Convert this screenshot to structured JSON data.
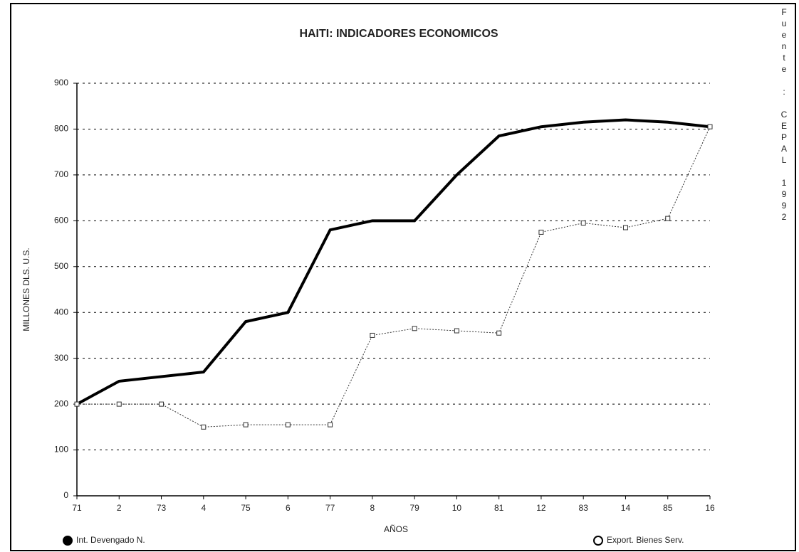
{
  "chart_data": {
    "type": "line",
    "title": "HAITI: INDICADORES ECONOMICOS",
    "y_label": "MILLONES DLS. U.S.",
    "x_label": "AÑOS",
    "source": "Fuente : CEPAL 1992",
    "categories": [
      "71",
      "2",
      "73",
      "4",
      "75",
      "6",
      "77",
      "8",
      "79",
      "10",
      "81",
      "12",
      "83",
      "14",
      "85",
      "16"
    ],
    "series": [
      {
        "name": "Int. Devengado N.",
        "color": "#000000",
        "values": [
          200,
          250,
          260,
          270,
          380,
          400,
          580,
          600,
          600,
          700,
          785,
          805,
          815,
          820,
          815,
          805
        ]
      },
      {
        "name": "Export. Bienes Serv.",
        "color": "#333333",
        "values": [
          200,
          200,
          200,
          150,
          155,
          155,
          155,
          350,
          365,
          360,
          355,
          575,
          595,
          585,
          605,
          805
        ]
      }
    ],
    "ylim": [
      0,
      900
    ],
    "yticks": [
      0,
      100,
      200,
      300,
      400,
      500,
      600,
      700,
      800,
      900
    ],
    "grid": true
  }
}
